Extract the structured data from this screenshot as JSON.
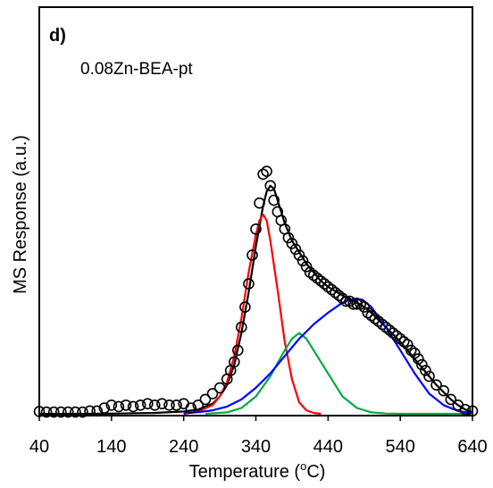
{
  "chart_data": {
    "type": "line",
    "panel_label": "d)",
    "annotation": "0.08Zn-BEA-pt",
    "xlabel": "Temperature (°C)",
    "xlabel_main": "Temperature (",
    "xlabel_sup": "o",
    "xlabel_end": "C)",
    "ylabel": "MS Response (a.u.)",
    "xlim": [
      40,
      640
    ],
    "ylim": [
      0,
      1.0
    ],
    "x_ticks": [
      40,
      140,
      240,
      340,
      440,
      540,
      640
    ],
    "x_tick_labels": [
      "40",
      "140",
      "240",
      "340",
      "440",
      "540",
      "640"
    ],
    "grid": false,
    "series": [
      {
        "style": "markers",
        "marker": "circle",
        "color": "#000000",
        "x": [
          40,
          50,
          60,
          70,
          80,
          90,
          100,
          110,
          120,
          130,
          140,
          150,
          160,
          170,
          180,
          190,
          200,
          210,
          220,
          230,
          240,
          250,
          260,
          270,
          280,
          290,
          300,
          305,
          310,
          315,
          320,
          325,
          330,
          335,
          340,
          345,
          350,
          355,
          360,
          365,
          370,
          375,
          380,
          385,
          390,
          395,
          400,
          405,
          410,
          415,
          420,
          425,
          430,
          435,
          440,
          445,
          450,
          455,
          460,
          465,
          470,
          475,
          480,
          485,
          490,
          495,
          500,
          505,
          510,
          515,
          520,
          525,
          530,
          535,
          540,
          545,
          550,
          555,
          560,
          565,
          570,
          575,
          580,
          590,
          600,
          610,
          620,
          630,
          640
        ],
        "y": [
          0.008,
          0.006,
          0.006,
          0.006,
          0.006,
          0.006,
          0.006,
          0.01,
          0.01,
          0.02,
          0.03,
          0.025,
          0.03,
          0.025,
          0.03,
          0.035,
          0.03,
          0.035,
          0.03,
          0.03,
          0.035,
          0.02,
          0.03,
          0.05,
          0.07,
          0.09,
          0.12,
          0.15,
          0.18,
          0.22,
          0.3,
          0.37,
          0.45,
          0.55,
          0.64,
          0.73,
          0.83,
          0.84,
          0.79,
          0.74,
          0.7,
          0.67,
          0.64,
          0.61,
          0.59,
          0.57,
          0.55,
          0.53,
          0.51,
          0.49,
          0.48,
          0.47,
          0.46,
          0.45,
          0.44,
          0.43,
          0.42,
          0.41,
          0.4,
          0.39,
          0.39,
          0.38,
          0.38,
          0.38,
          0.37,
          0.35,
          0.34,
          0.33,
          0.32,
          0.31,
          0.3,
          0.29,
          0.28,
          0.27,
          0.26,
          0.25,
          0.24,
          0.22,
          0.21,
          0.19,
          0.17,
          0.15,
          0.13,
          0.1,
          0.08,
          0.05,
          0.03,
          0.015,
          0.01
        ]
      },
      {
        "style": "line",
        "color": "#000000",
        "x": [
          40,
          100,
          150,
          200,
          240,
          260,
          280,
          290,
          300,
          310,
          320,
          330,
          340,
          350,
          355,
          360,
          365,
          370,
          380,
          390,
          400,
          410,
          420,
          430,
          440,
          450,
          460,
          470,
          480,
          490,
          500,
          510,
          520,
          530,
          540,
          550,
          560,
          570,
          580,
          590,
          600,
          610,
          620,
          630,
          640
        ],
        "y": [
          0.0,
          0.0,
          0.001,
          0.003,
          0.008,
          0.015,
          0.035,
          0.06,
          0.1,
          0.17,
          0.28,
          0.42,
          0.58,
          0.72,
          0.77,
          0.79,
          0.78,
          0.74,
          0.66,
          0.6,
          0.56,
          0.52,
          0.49,
          0.46,
          0.44,
          0.425,
          0.41,
          0.395,
          0.385,
          0.37,
          0.35,
          0.325,
          0.3,
          0.275,
          0.25,
          0.22,
          0.19,
          0.16,
          0.13,
          0.1,
          0.075,
          0.05,
          0.03,
          0.015,
          0.005
        ]
      },
      {
        "style": "line",
        "color": "#ff0000",
        "x": [
          240,
          260,
          280,
          290,
          300,
          310,
          320,
          330,
          340,
          345,
          350,
          355,
          360,
          370,
          380,
          390,
          400,
          410,
          420,
          430
        ],
        "y": [
          0.0,
          0.008,
          0.03,
          0.06,
          0.11,
          0.2,
          0.33,
          0.49,
          0.62,
          0.67,
          0.69,
          0.67,
          0.6,
          0.43,
          0.25,
          0.12,
          0.04,
          0.012,
          0.003,
          0.0
        ]
      },
      {
        "style": "line",
        "color": "#00aa44",
        "x": [
          270,
          300,
          320,
          340,
          360,
          380,
          390,
          400,
          410,
          420,
          440,
          460,
          480,
          500,
          520,
          550,
          580,
          640
        ],
        "y": [
          0.0,
          0.005,
          0.02,
          0.06,
          0.13,
          0.22,
          0.26,
          0.28,
          0.26,
          0.22,
          0.14,
          0.06,
          0.02,
          0.005,
          0.001,
          0.0,
          0.0,
          0.0
        ]
      },
      {
        "style": "line",
        "color": "#0000ff",
        "x": [
          240,
          260,
          280,
          300,
          320,
          340,
          360,
          380,
          400,
          420,
          440,
          460,
          470,
          480,
          490,
          500,
          520,
          540,
          560,
          580,
          600,
          620,
          640
        ],
        "y": [
          0.002,
          0.006,
          0.012,
          0.025,
          0.05,
          0.09,
          0.14,
          0.2,
          0.26,
          0.31,
          0.35,
          0.385,
          0.395,
          0.4,
          0.39,
          0.37,
          0.3,
          0.22,
          0.14,
          0.07,
          0.03,
          0.01,
          0.002
        ]
      }
    ]
  }
}
